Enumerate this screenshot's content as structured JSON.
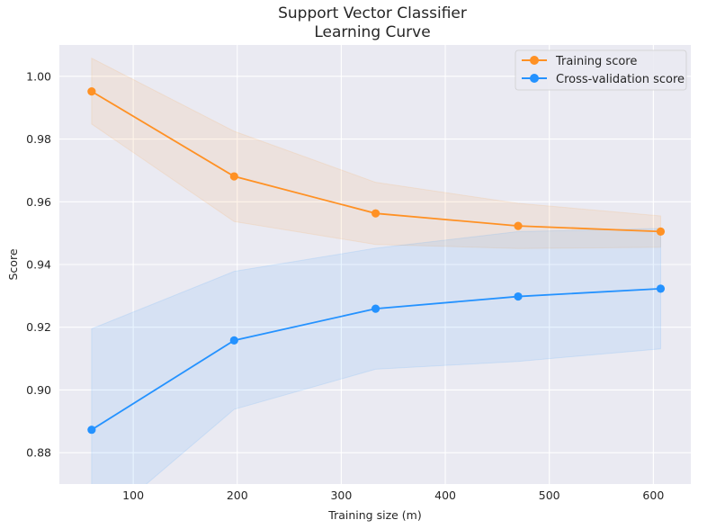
{
  "chart_data": {
    "type": "line",
    "title": "Support Vector Classifier",
    "subtitle": "Learning Curve",
    "xlabel": "Training size (m)",
    "ylabel": "Score",
    "xlim": [
      29,
      636
    ],
    "ylim": [
      0.87,
      1.01
    ],
    "x_ticks": [
      100,
      200,
      300,
      400,
      500,
      600
    ],
    "y_ticks": [
      0.88,
      0.9,
      0.92,
      0.94,
      0.96,
      0.98,
      1.0
    ],
    "grid": true,
    "legend_position": "top-right",
    "series": [
      {
        "name": "Training score",
        "color": "#ff9124",
        "x": [
          60,
          197,
          333,
          470,
          607
        ],
        "y": [
          0.9952,
          0.9681,
          0.9563,
          0.9523,
          0.9505
        ],
        "band_upper": [
          1.0058,
          0.9825,
          0.9662,
          0.9595,
          0.9555
        ],
        "band_lower": [
          0.9848,
          0.9537,
          0.9464,
          0.9451,
          0.9455
        ]
      },
      {
        "name": "Cross-validation score",
        "color": "#2492ff",
        "x": [
          60,
          197,
          333,
          470,
          607
        ],
        "y": [
          0.8873,
          0.9158,
          0.9259,
          0.9298,
          0.9323
        ],
        "band_upper": [
          0.9195,
          0.9378,
          0.9452,
          0.9505,
          0.9515
        ],
        "band_lower": [
          0.8551,
          0.8938,
          0.9066,
          0.9091,
          0.9131
        ]
      }
    ]
  }
}
